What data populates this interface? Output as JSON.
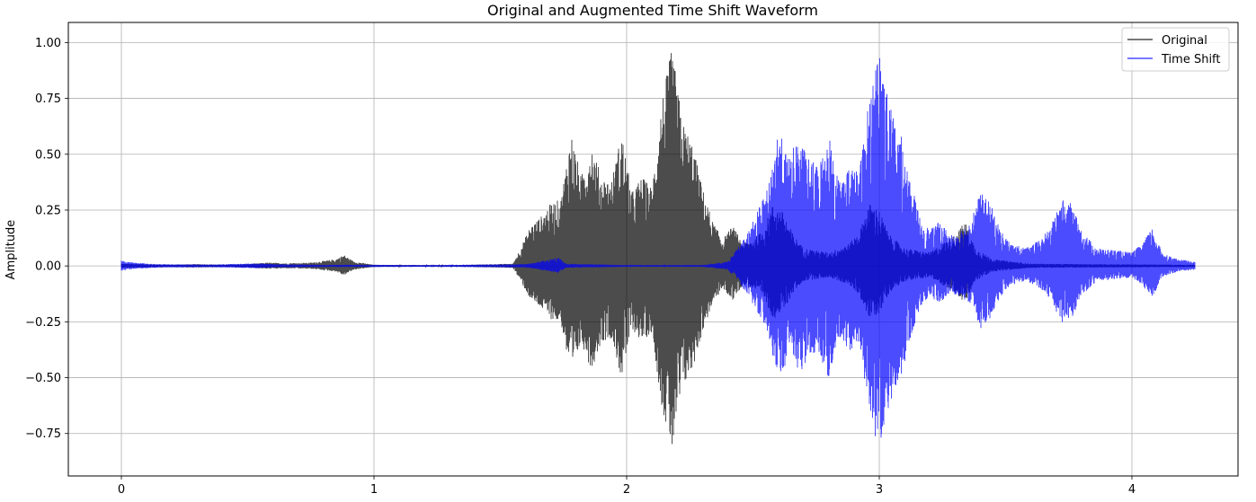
{
  "chart_data": {
    "type": "line",
    "title": "Original and Augmented Time Shift Waveform",
    "xlabel": "",
    "ylabel": "Amplitude",
    "xlim": [
      -0.21,
      4.42
    ],
    "ylim": [
      -0.94,
      1.09
    ],
    "xticks": [
      0,
      1,
      2,
      3,
      4
    ],
    "yticks": [
      -0.75,
      -0.5,
      -0.25,
      0.0,
      0.25,
      0.5,
      0.75,
      1.0
    ],
    "ytick_labels": [
      "−0.75",
      "−0.50",
      "−0.25",
      "0.00",
      "0.25",
      "0.50",
      "0.75",
      "1.00"
    ],
    "grid": true,
    "legend_position": "top-right",
    "series": [
      {
        "name": "Original",
        "color": "#000000",
        "opacity": 0.7,
        "envelope": [
          [
            0.0,
            0.01
          ],
          [
            0.1,
            0.008
          ],
          [
            0.2,
            0.006
          ],
          [
            0.3,
            0.008
          ],
          [
            0.4,
            0.006
          ],
          [
            0.5,
            0.008
          ],
          [
            0.58,
            0.015
          ],
          [
            0.65,
            0.012
          ],
          [
            0.75,
            0.015
          ],
          [
            0.85,
            0.03
          ],
          [
            0.88,
            0.05
          ],
          [
            0.92,
            0.02
          ],
          [
            1.0,
            0.005
          ],
          [
            1.3,
            0.003
          ],
          [
            1.55,
            0.01
          ],
          [
            1.58,
            0.08
          ],
          [
            1.62,
            0.18
          ],
          [
            1.66,
            0.22
          ],
          [
            1.7,
            0.28
          ],
          [
            1.74,
            0.3
          ],
          [
            1.78,
            0.6
          ],
          [
            1.82,
            0.4
          ],
          [
            1.86,
            0.55
          ],
          [
            1.9,
            0.4
          ],
          [
            1.94,
            0.38
          ],
          [
            1.98,
            0.6
          ],
          [
            2.02,
            0.33
          ],
          [
            2.06,
            0.4
          ],
          [
            2.1,
            0.35
          ],
          [
            2.14,
            0.75
          ],
          [
            2.18,
            0.98
          ],
          [
            2.22,
            0.65
          ],
          [
            2.26,
            0.55
          ],
          [
            2.3,
            0.35
          ],
          [
            2.34,
            0.2
          ],
          [
            2.38,
            0.12
          ],
          [
            2.42,
            0.18
          ],
          [
            2.46,
            0.1
          ],
          [
            2.5,
            0.12
          ],
          [
            2.54,
            0.16
          ],
          [
            2.58,
            0.28
          ],
          [
            2.62,
            0.24
          ],
          [
            2.66,
            0.14
          ],
          [
            2.7,
            0.08
          ],
          [
            2.8,
            0.06
          ],
          [
            2.88,
            0.1
          ],
          [
            2.92,
            0.15
          ],
          [
            2.96,
            0.28
          ],
          [
            3.0,
            0.25
          ],
          [
            3.04,
            0.14
          ],
          [
            3.1,
            0.08
          ],
          [
            3.2,
            0.06
          ],
          [
            3.3,
            0.14
          ],
          [
            3.34,
            0.2
          ],
          [
            3.38,
            0.08
          ],
          [
            3.45,
            0.03
          ],
          [
            3.6,
            0.01
          ],
          [
            4.25,
            0.005
          ]
        ]
      },
      {
        "name": "Time Shift",
        "color": "#0000ff",
        "opacity": 0.7,
        "envelope": [
          [
            0.0,
            0.025
          ],
          [
            0.05,
            0.015
          ],
          [
            0.15,
            0.008
          ],
          [
            0.35,
            0.006
          ],
          [
            0.55,
            0.012
          ],
          [
            0.6,
            0.008
          ],
          [
            0.8,
            0.005
          ],
          [
            1.0,
            0.005
          ],
          [
            1.2,
            0.004
          ],
          [
            1.4,
            0.006
          ],
          [
            1.6,
            0.008
          ],
          [
            1.7,
            0.03
          ],
          [
            1.73,
            0.04
          ],
          [
            1.76,
            0.01
          ],
          [
            2.0,
            0.004
          ],
          [
            2.3,
            0.004
          ],
          [
            2.4,
            0.02
          ],
          [
            2.44,
            0.08
          ],
          [
            2.48,
            0.15
          ],
          [
            2.52,
            0.25
          ],
          [
            2.56,
            0.35
          ],
          [
            2.6,
            0.62
          ],
          [
            2.64,
            0.48
          ],
          [
            2.68,
            0.58
          ],
          [
            2.72,
            0.48
          ],
          [
            2.76,
            0.45
          ],
          [
            2.8,
            0.6
          ],
          [
            2.84,
            0.38
          ],
          [
            2.88,
            0.45
          ],
          [
            2.92,
            0.42
          ],
          [
            2.96,
            0.75
          ],
          [
            3.0,
            1.0
          ],
          [
            3.04,
            0.72
          ],
          [
            3.08,
            0.62
          ],
          [
            3.12,
            0.4
          ],
          [
            3.16,
            0.22
          ],
          [
            3.2,
            0.16
          ],
          [
            3.24,
            0.2
          ],
          [
            3.28,
            0.14
          ],
          [
            3.32,
            0.16
          ],
          [
            3.36,
            0.2
          ],
          [
            3.4,
            0.33
          ],
          [
            3.44,
            0.28
          ],
          [
            3.48,
            0.16
          ],
          [
            3.52,
            0.1
          ],
          [
            3.58,
            0.08
          ],
          [
            3.64,
            0.12
          ],
          [
            3.68,
            0.18
          ],
          [
            3.72,
            0.3
          ],
          [
            3.76,
            0.28
          ],
          [
            3.8,
            0.16
          ],
          [
            3.86,
            0.08
          ],
          [
            3.94,
            0.07
          ],
          [
            4.0,
            0.06
          ],
          [
            4.04,
            0.1
          ],
          [
            4.08,
            0.17
          ],
          [
            4.12,
            0.06
          ],
          [
            4.18,
            0.03
          ],
          [
            4.25,
            0.02
          ]
        ]
      }
    ]
  }
}
